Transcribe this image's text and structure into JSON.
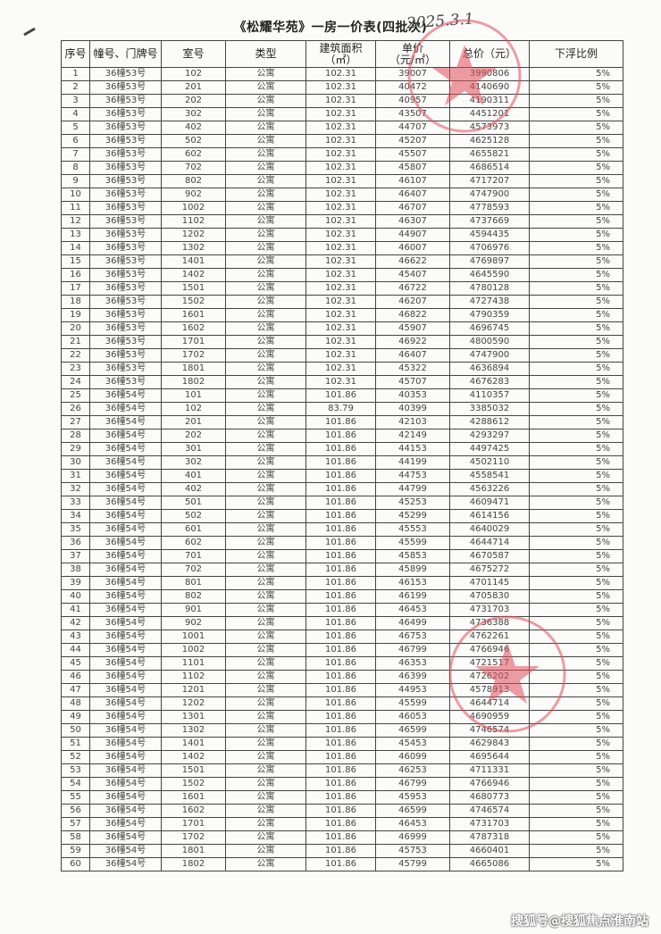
{
  "document": {
    "title": "《松耀华苑》一房一价表(四批次)",
    "handwritten_date": "2025.3.1",
    "watermark": "搜狐号@搜狐焦点淮南站",
    "stamp_color": "#e0505a"
  },
  "table": {
    "headers": [
      "序号",
      "幢号、门牌号",
      "室号",
      "类型",
      "建筑面积\n（㎡）",
      "单价\n（元/㎡）",
      "总价（元）",
      "下浮比例"
    ],
    "rows": [
      [
        "1",
        "36幢53号",
        "102",
        "公寓",
        "102.31",
        "39007",
        "3990806",
        "5%"
      ],
      [
        "2",
        "36幢53号",
        "201",
        "公寓",
        "102.31",
        "40472",
        "4140690",
        "5%"
      ],
      [
        "3",
        "36幢53号",
        "202",
        "公寓",
        "102.31",
        "40957",
        "4190311",
        "5%"
      ],
      [
        "4",
        "36幢53号",
        "302",
        "公寓",
        "102.31",
        "43507",
        "4451201",
        "5%"
      ],
      [
        "5",
        "36幢53号",
        "402",
        "公寓",
        "102.31",
        "44707",
        "4573973",
        "5%"
      ],
      [
        "6",
        "36幢53号",
        "502",
        "公寓",
        "102.31",
        "45207",
        "4625128",
        "5%"
      ],
      [
        "7",
        "36幢53号",
        "602",
        "公寓",
        "102.31",
        "45507",
        "4655821",
        "5%"
      ],
      [
        "8",
        "36幢53号",
        "702",
        "公寓",
        "102.31",
        "45807",
        "4686514",
        "5%"
      ],
      [
        "9",
        "36幢53号",
        "802",
        "公寓",
        "102.31",
        "46107",
        "4717207",
        "5%"
      ],
      [
        "10",
        "36幢53号",
        "902",
        "公寓",
        "102.31",
        "46407",
        "4747900",
        "5%"
      ],
      [
        "11",
        "36幢53号",
        "1002",
        "公寓",
        "102.31",
        "46707",
        "4778593",
        "5%"
      ],
      [
        "12",
        "36幢53号",
        "1102",
        "公寓",
        "102.31",
        "46307",
        "4737669",
        "5%"
      ],
      [
        "13",
        "36幢53号",
        "1202",
        "公寓",
        "102.31",
        "44907",
        "4594435",
        "5%"
      ],
      [
        "14",
        "36幢53号",
        "1302",
        "公寓",
        "102.31",
        "46007",
        "4706976",
        "5%"
      ],
      [
        "15",
        "36幢53号",
        "1401",
        "公寓",
        "102.31",
        "46622",
        "4769897",
        "5%"
      ],
      [
        "16",
        "36幢53号",
        "1402",
        "公寓",
        "102.31",
        "45407",
        "4645590",
        "5%"
      ],
      [
        "17",
        "36幢53号",
        "1501",
        "公寓",
        "102.31",
        "46722",
        "4780128",
        "5%"
      ],
      [
        "18",
        "36幢53号",
        "1502",
        "公寓",
        "102.31",
        "46207",
        "4727438",
        "5%"
      ],
      [
        "19",
        "36幢53号",
        "1601",
        "公寓",
        "102.31",
        "46822",
        "4790359",
        "5%"
      ],
      [
        "20",
        "36幢53号",
        "1602",
        "公寓",
        "102.31",
        "45907",
        "4696745",
        "5%"
      ],
      [
        "21",
        "36幢53号",
        "1701",
        "公寓",
        "102.31",
        "46922",
        "4800590",
        "5%"
      ],
      [
        "22",
        "36幢53号",
        "1702",
        "公寓",
        "102.31",
        "46407",
        "4747900",
        "5%"
      ],
      [
        "23",
        "36幢53号",
        "1801",
        "公寓",
        "102.31",
        "45322",
        "4636894",
        "5%"
      ],
      [
        "24",
        "36幢53号",
        "1802",
        "公寓",
        "102.31",
        "45707",
        "4676283",
        "5%"
      ],
      [
        "25",
        "36幢54号",
        "101",
        "公寓",
        "101.86",
        "40353",
        "4110357",
        "5%"
      ],
      [
        "26",
        "36幢54号",
        "102",
        "公寓",
        "83.79",
        "40399",
        "3385032",
        "5%"
      ],
      [
        "27",
        "36幢54号",
        "201",
        "公寓",
        "101.86",
        "42103",
        "4288612",
        "5%"
      ],
      [
        "28",
        "36幢54号",
        "202",
        "公寓",
        "101.86",
        "42149",
        "4293297",
        "5%"
      ],
      [
        "29",
        "36幢54号",
        "301",
        "公寓",
        "101.86",
        "44153",
        "4497425",
        "5%"
      ],
      [
        "30",
        "36幢54号",
        "302",
        "公寓",
        "101.86",
        "44199",
        "4502110",
        "5%"
      ],
      [
        "31",
        "36幢54号",
        "401",
        "公寓",
        "101.86",
        "44753",
        "4558541",
        "5%"
      ],
      [
        "32",
        "36幢54号",
        "402",
        "公寓",
        "101.86",
        "44799",
        "4563226",
        "5%"
      ],
      [
        "33",
        "36幢54号",
        "501",
        "公寓",
        "101.86",
        "45253",
        "4609471",
        "5%"
      ],
      [
        "34",
        "36幢54号",
        "502",
        "公寓",
        "101.86",
        "45299",
        "4614156",
        "5%"
      ],
      [
        "35",
        "36幢54号",
        "601",
        "公寓",
        "101.86",
        "45553",
        "4640029",
        "5%"
      ],
      [
        "36",
        "36幢54号",
        "602",
        "公寓",
        "101.86",
        "45599",
        "4644714",
        "5%"
      ],
      [
        "37",
        "36幢54号",
        "701",
        "公寓",
        "101.86",
        "45853",
        "4670587",
        "5%"
      ],
      [
        "38",
        "36幢54号",
        "702",
        "公寓",
        "101.86",
        "45899",
        "4675272",
        "5%"
      ],
      [
        "39",
        "36幢54号",
        "801",
        "公寓",
        "101.86",
        "46153",
        "4701145",
        "5%"
      ],
      [
        "40",
        "36幢54号",
        "802",
        "公寓",
        "101.86",
        "46199",
        "4705830",
        "5%"
      ],
      [
        "41",
        "36幢54号",
        "901",
        "公寓",
        "101.86",
        "46453",
        "4731703",
        "5%"
      ],
      [
        "42",
        "36幢54号",
        "902",
        "公寓",
        "101.86",
        "46499",
        "4736388",
        "5%"
      ],
      [
        "43",
        "36幢54号",
        "1001",
        "公寓",
        "101.86",
        "46753",
        "4762261",
        "5%"
      ],
      [
        "44",
        "36幢54号",
        "1002",
        "公寓",
        "101.86",
        "46799",
        "4766946",
        "5%"
      ],
      [
        "45",
        "36幢54号",
        "1101",
        "公寓",
        "101.86",
        "46353",
        "4721517",
        "5%"
      ],
      [
        "46",
        "36幢54号",
        "1102",
        "公寓",
        "101.86",
        "46399",
        "4726202",
        "5%"
      ],
      [
        "47",
        "36幢54号",
        "1201",
        "公寓",
        "101.86",
        "44953",
        "4578913",
        "5%"
      ],
      [
        "48",
        "36幢54号",
        "1202",
        "公寓",
        "101.86",
        "45599",
        "4644714",
        "5%"
      ],
      [
        "49",
        "36幢54号",
        "1301",
        "公寓",
        "101.86",
        "46053",
        "4690959",
        "5%"
      ],
      [
        "50",
        "36幢54号",
        "1302",
        "公寓",
        "101.86",
        "46599",
        "4746574",
        "5%"
      ],
      [
        "51",
        "36幢54号",
        "1401",
        "公寓",
        "101.86",
        "45453",
        "4629843",
        "5%"
      ],
      [
        "52",
        "36幢54号",
        "1402",
        "公寓",
        "101.86",
        "46099",
        "4695644",
        "5%"
      ],
      [
        "53",
        "36幢54号",
        "1501",
        "公寓",
        "101.86",
        "46253",
        "4711331",
        "5%"
      ],
      [
        "54",
        "36幢54号",
        "1502",
        "公寓",
        "101.86",
        "46799",
        "4766946",
        "5%"
      ],
      [
        "55",
        "36幢54号",
        "1601",
        "公寓",
        "101.86",
        "45953",
        "4680773",
        "5%"
      ],
      [
        "56",
        "36幢54号",
        "1602",
        "公寓",
        "101.86",
        "46599",
        "4746574",
        "5%"
      ],
      [
        "57",
        "36幢54号",
        "1701",
        "公寓",
        "101.86",
        "46453",
        "4731703",
        "5%"
      ],
      [
        "58",
        "36幢54号",
        "1702",
        "公寓",
        "101.86",
        "46999",
        "4787318",
        "5%"
      ],
      [
        "59",
        "36幢54号",
        "1801",
        "公寓",
        "101.86",
        "45753",
        "4660401",
        "5%"
      ],
      [
        "60",
        "36幢54号",
        "1802",
        "公寓",
        "101.86",
        "45799",
        "4665086",
        "5%"
      ]
    ]
  }
}
